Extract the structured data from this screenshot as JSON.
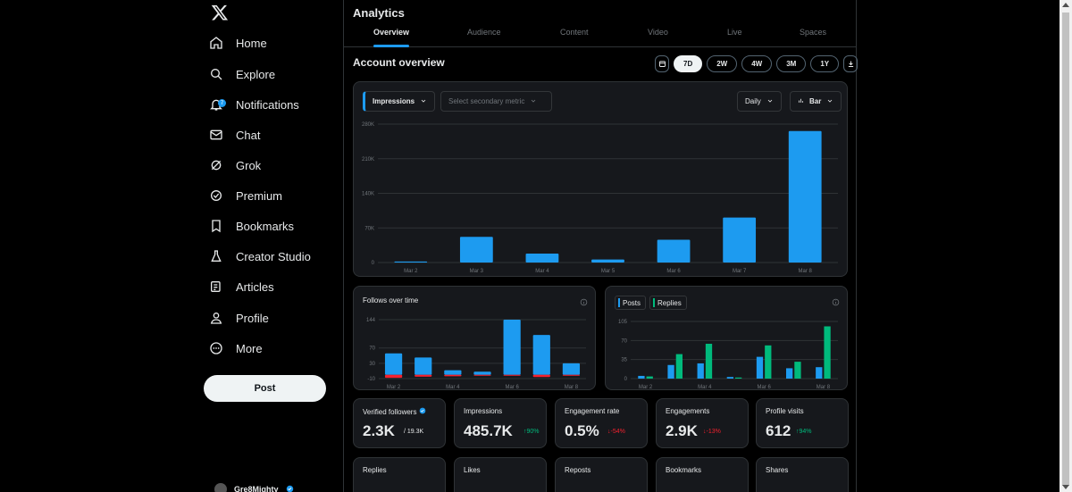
{
  "sidebar": {
    "logo_icon": "x-logo-icon",
    "items": [
      {
        "label": "Home",
        "icon": "home-icon"
      },
      {
        "label": "Explore",
        "icon": "search-icon"
      },
      {
        "label": "Notifications",
        "icon": "bell-icon",
        "badge": "7"
      },
      {
        "label": "Chat",
        "icon": "mail-icon"
      },
      {
        "label": "Grok",
        "icon": "grok-icon"
      },
      {
        "label": "Premium",
        "icon": "verified-icon"
      },
      {
        "label": "Bookmarks",
        "icon": "bookmark-icon"
      },
      {
        "label": "Creator Studio",
        "icon": "flask-icon"
      },
      {
        "label": "Articles",
        "icon": "article-icon"
      },
      {
        "label": "Profile",
        "icon": "person-icon"
      },
      {
        "label": "More",
        "icon": "more-icon"
      }
    ],
    "post_label": "Post",
    "user_name": "Gre8Mighty"
  },
  "main": {
    "title": "Analytics",
    "tabs": [
      "Overview",
      "Audience",
      "Content",
      "Video",
      "Live",
      "Spaces"
    ],
    "section_title": "Account overview",
    "ranges": [
      "7D",
      "2W",
      "4W",
      "3M",
      "1Y"
    ],
    "active_range": "7D",
    "primary_metric": "Impressions",
    "secondary_metric_placeholder": "Select secondary metric",
    "interval": "Daily",
    "chart_style": "Bar",
    "follows_title": "Follows over time",
    "legend_posts": "Posts",
    "legend_replies": "Replies"
  },
  "metrics": [
    {
      "label": "Verified followers",
      "value": "2.3K",
      "sub": "/ 19.3K",
      "trend": "none",
      "verified": true
    },
    {
      "label": "Impressions",
      "value": "485.7K",
      "sub": "↑90%",
      "trend": "up"
    },
    {
      "label": "Engagement rate",
      "value": "0.5%",
      "sub": "↓-54%",
      "trend": "down"
    },
    {
      "label": "Engagements",
      "value": "2.9K",
      "sub": "↓-13%",
      "trend": "down"
    },
    {
      "label": "Profile visits",
      "value": "612",
      "sub": "↑94%",
      "trend": "up"
    },
    {
      "label": "Replies",
      "value": "",
      "sub": "",
      "trend": "none"
    },
    {
      "label": "Likes",
      "value": "",
      "sub": "",
      "trend": "none"
    },
    {
      "label": "Reposts",
      "value": "",
      "sub": "",
      "trend": "none"
    },
    {
      "label": "Bookmarks",
      "value": "",
      "sub": "",
      "trend": "none"
    },
    {
      "label": "Shares",
      "value": "",
      "sub": "",
      "trend": "none"
    }
  ],
  "colors": {
    "accent": "#1d9bf0",
    "green": "#00ba7c",
    "red": "#f4212e"
  },
  "chart_data": [
    {
      "type": "bar",
      "title": "",
      "categories": [
        "Mar 2",
        "Mar 3",
        "Mar 4",
        "Mar 5",
        "Mar 6",
        "Mar 7",
        "Mar 8"
      ],
      "series": [
        {
          "name": "Impressions",
          "values": [
            2000,
            52000,
            18000,
            6000,
            46000,
            91000,
            266000
          ]
        }
      ],
      "y_ticks": [
        "0",
        "70K",
        "140K",
        "210K",
        "280K"
      ],
      "ylim": [
        0,
        280000
      ],
      "x_tick_labels": [
        "Mar 2",
        "Mar 3",
        "Mar 4",
        "Mar 5",
        "Mar 6",
        "Mar 7",
        "Mar 8"
      ]
    },
    {
      "type": "bar",
      "title": "Follows over time",
      "categories": [
        "Mar 2",
        "Mar 3",
        "Mar 4",
        "Mar 5",
        "Mar 6",
        "Mar 7",
        "Mar 8"
      ],
      "series": [
        {
          "values": [
            56,
            45,
            12,
            8,
            144,
            104,
            30
          ]
        },
        {
          "values": [
            -8,
            -5,
            -4,
            -2,
            0,
            -6,
            0
          ]
        }
      ],
      "y_ticks": [
        "-10",
        "30",
        "70",
        "144"
      ],
      "ylim": [
        -10,
        144
      ],
      "x_tick_labels": [
        "Mar 2",
        "Mar 4",
        "Mar 6",
        "Mar 8"
      ]
    },
    {
      "type": "bar",
      "title": "",
      "categories": [
        "Mar 2",
        "Mar 3",
        "Mar 4",
        "Mar 5",
        "Mar 6",
        "Mar 7",
        "Mar 8"
      ],
      "series": [
        {
          "name": "Posts",
          "values": [
            5,
            25,
            28,
            3,
            40,
            19,
            21
          ]
        },
        {
          "name": "Replies",
          "values": [
            4,
            45,
            64,
            2,
            61,
            31,
            96
          ]
        }
      ],
      "y_ticks": [
        "0",
        "35",
        "70",
        "105"
      ],
      "ylim": [
        0,
        105
      ],
      "x_tick_labels": [
        "Mar 2",
        "Mar 4",
        "Mar 6",
        "Mar 8"
      ]
    }
  ]
}
